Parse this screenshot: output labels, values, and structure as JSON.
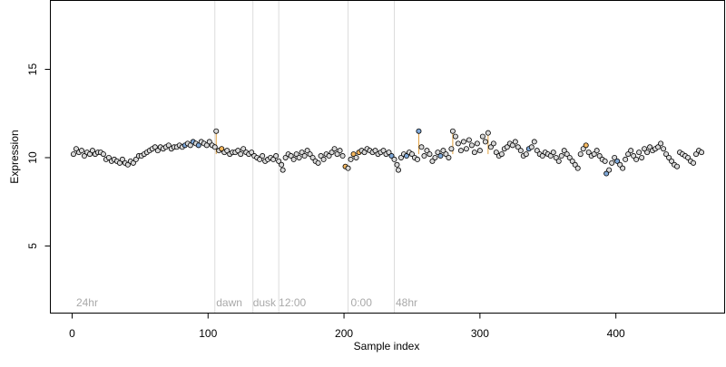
{
  "chart_data": {
    "type": "scatter",
    "title": "",
    "xlabel": "Sample index",
    "ylabel": "Expression",
    "xlim": [
      -16,
      480
    ],
    "ylim": [
      1.2,
      18.9
    ],
    "x_ticks": [
      0,
      100,
      200,
      300,
      400
    ],
    "y_ticks": [
      5,
      10,
      15
    ],
    "grid": false,
    "legend": "none",
    "colors": {
      "default_point": "#d9d9d9",
      "low_point": "#7fa8d8",
      "high_point": "#f5b860",
      "stem": "#e0a040",
      "divider": "#dcdcdc",
      "region_label": "#a9a9a9"
    },
    "regions": [
      {
        "label": "24hr",
        "x": 3
      },
      {
        "label": "dawn",
        "x": 106
      },
      {
        "label": "dusk",
        "x": 133
      },
      {
        "label": "12:00",
        "x": 152
      },
      {
        "label": "0:00",
        "x": 205
      },
      {
        "label": "48hr",
        "x": 238
      }
    ],
    "dividers": [
      105,
      133,
      152,
      203,
      237
    ],
    "series": [
      {
        "points": [
          [
            1,
            10.2
          ],
          [
            3,
            10.5
          ],
          [
            5,
            10.3
          ],
          [
            7,
            10.4
          ],
          [
            9,
            10.1
          ],
          [
            11,
            10.3
          ],
          [
            13,
            10.2
          ],
          [
            15,
            10.4
          ],
          [
            17,
            10.2
          ],
          [
            19,
            10.3
          ],
          [
            21,
            10.3
          ],
          [
            23,
            10.2
          ],
          [
            25,
            9.9
          ],
          [
            27,
            10.0
          ],
          [
            29,
            9.8
          ],
          [
            31,
            9.9
          ],
          [
            33,
            9.8
          ],
          [
            35,
            9.7
          ],
          [
            37,
            9.9
          ],
          [
            39,
            9.7
          ],
          [
            41,
            9.6
          ],
          [
            43,
            9.8
          ],
          [
            45,
            9.7
          ],
          [
            47,
            9.9
          ],
          [
            49,
            10.1
          ],
          [
            51,
            10.1
          ],
          [
            53,
            10.2
          ],
          [
            55,
            10.3
          ],
          [
            57,
            10.4
          ],
          [
            59,
            10.5
          ],
          [
            61,
            10.6
          ],
          [
            63,
            10.4
          ],
          [
            65,
            10.6
          ],
          [
            67,
            10.5
          ],
          [
            69,
            10.6
          ],
          [
            71,
            10.7
          ],
          [
            73,
            10.5
          ],
          [
            75,
            10.6
          ],
          [
            77,
            10.6
          ],
          [
            79,
            10.7
          ],
          [
            81,
            10.6
          ],
          [
            83,
            10.7
          ],
          [
            85,
            10.8
          ],
          [
            87,
            10.7
          ],
          [
            89,
            10.9
          ],
          [
            91,
            10.8
          ],
          [
            93,
            10.7
          ],
          [
            95,
            10.9
          ],
          [
            97,
            10.8
          ],
          [
            99,
            10.7
          ],
          [
            101,
            10.9
          ],
          [
            103,
            10.7
          ],
          [
            105,
            10.6
          ],
          [
            106,
            11.5
          ],
          [
            108,
            10.4
          ],
          [
            110,
            10.5
          ],
          [
            112,
            10.3
          ],
          [
            114,
            10.4
          ],
          [
            116,
            10.2
          ],
          [
            118,
            10.3
          ],
          [
            120,
            10.3
          ],
          [
            122,
            10.4
          ],
          [
            124,
            10.2
          ],
          [
            126,
            10.5
          ],
          [
            128,
            10.3
          ],
          [
            130,
            10.2
          ],
          [
            132,
            10.3
          ],
          [
            134,
            10.1
          ],
          [
            136,
            10.0
          ],
          [
            138,
            9.9
          ],
          [
            140,
            10.1
          ],
          [
            142,
            9.8
          ],
          [
            144,
            9.9
          ],
          [
            146,
            10.0
          ],
          [
            148,
            9.9
          ],
          [
            150,
            10.1
          ],
          [
            152,
            9.8
          ],
          [
            154,
            9.6
          ],
          [
            155,
            9.3
          ],
          [
            157,
            10.0
          ],
          [
            159,
            10.2
          ],
          [
            161,
            10.1
          ],
          [
            163,
            9.9
          ],
          [
            165,
            10.2
          ],
          [
            167,
            10.0
          ],
          [
            169,
            10.3
          ],
          [
            171,
            10.1
          ],
          [
            173,
            10.4
          ],
          [
            175,
            10.2
          ],
          [
            177,
            10.0
          ],
          [
            179,
            9.8
          ],
          [
            181,
            9.7
          ],
          [
            183,
            10.1
          ],
          [
            185,
            9.9
          ],
          [
            187,
            10.2
          ],
          [
            189,
            10.1
          ],
          [
            191,
            10.3
          ],
          [
            193,
            10.5
          ],
          [
            195,
            10.2
          ],
          [
            197,
            10.4
          ],
          [
            199,
            10.1
          ],
          [
            201,
            9.5
          ],
          [
            203,
            9.4
          ],
          [
            205,
            9.9
          ],
          [
            207,
            10.2
          ],
          [
            209,
            10.0
          ],
          [
            211,
            10.3
          ],
          [
            213,
            10.4
          ],
          [
            215,
            10.3
          ],
          [
            217,
            10.5
          ],
          [
            219,
            10.4
          ],
          [
            221,
            10.3
          ],
          [
            223,
            10.4
          ],
          [
            225,
            10.2
          ],
          [
            227,
            10.3
          ],
          [
            229,
            10.4
          ],
          [
            231,
            10.2
          ],
          [
            233,
            10.3
          ],
          [
            235,
            10.1
          ],
          [
            237,
            9.9
          ],
          [
            239,
            9.6
          ],
          [
            240,
            9.3
          ],
          [
            242,
            10.0
          ],
          [
            244,
            10.2
          ],
          [
            246,
            10.1
          ],
          [
            248,
            10.3
          ],
          [
            250,
            10.2
          ],
          [
            252,
            10.0
          ],
          [
            254,
            9.9
          ],
          [
            255,
            11.5
          ],
          [
            257,
            10.6
          ],
          [
            259,
            10.1
          ],
          [
            261,
            10.4
          ],
          [
            263,
            10.2
          ],
          [
            265,
            9.8
          ],
          [
            267,
            10.0
          ],
          [
            269,
            10.3
          ],
          [
            271,
            10.1
          ],
          [
            273,
            10.4
          ],
          [
            275,
            10.2
          ],
          [
            277,
            10.0
          ],
          [
            279,
            10.5
          ],
          [
            280,
            11.5
          ],
          [
            282,
            11.2
          ],
          [
            284,
            10.8
          ],
          [
            286,
            10.4
          ],
          [
            288,
            10.9
          ],
          [
            290,
            10.5
          ],
          [
            292,
            11.0
          ],
          [
            294,
            10.7
          ],
          [
            296,
            10.3
          ],
          [
            298,
            10.8
          ],
          [
            300,
            10.4
          ],
          [
            302,
            11.2
          ],
          [
            304,
            10.9
          ],
          [
            306,
            11.4
          ],
          [
            308,
            10.6
          ],
          [
            310,
            10.8
          ],
          [
            312,
            10.3
          ],
          [
            314,
            10.1
          ],
          [
            316,
            10.2
          ],
          [
            318,
            10.5
          ],
          [
            320,
            10.6
          ],
          [
            322,
            10.8
          ],
          [
            324,
            10.7
          ],
          [
            326,
            10.9
          ],
          [
            328,
            10.6
          ],
          [
            330,
            10.4
          ],
          [
            332,
            10.1
          ],
          [
            334,
            10.2
          ],
          [
            336,
            10.5
          ],
          [
            338,
            10.6
          ],
          [
            340,
            10.9
          ],
          [
            342,
            10.4
          ],
          [
            344,
            10.2
          ],
          [
            346,
            10.1
          ],
          [
            348,
            10.3
          ],
          [
            350,
            10.2
          ],
          [
            352,
            10.1
          ],
          [
            354,
            10.3
          ],
          [
            356,
            10.0
          ],
          [
            358,
            9.8
          ],
          [
            360,
            10.1
          ],
          [
            362,
            10.4
          ],
          [
            364,
            10.2
          ],
          [
            366,
            10.0
          ],
          [
            368,
            9.8
          ],
          [
            370,
            9.6
          ],
          [
            372,
            9.4
          ],
          [
            374,
            10.2
          ],
          [
            376,
            10.5
          ],
          [
            378,
            10.7
          ],
          [
            380,
            10.3
          ],
          [
            382,
            10.1
          ],
          [
            384,
            10.2
          ],
          [
            386,
            10.4
          ],
          [
            388,
            10.1
          ],
          [
            390,
            9.9
          ],
          [
            392,
            9.8
          ],
          [
            393,
            9.1
          ],
          [
            395,
            9.3
          ],
          [
            397,
            9.7
          ],
          [
            399,
            10.0
          ],
          [
            401,
            9.8
          ],
          [
            403,
            9.6
          ],
          [
            405,
            9.4
          ],
          [
            407,
            9.9
          ],
          [
            409,
            10.2
          ],
          [
            411,
            10.4
          ],
          [
            413,
            10.1
          ],
          [
            415,
            9.9
          ],
          [
            417,
            10.3
          ],
          [
            419,
            10.0
          ],
          [
            421,
            10.5
          ],
          [
            423,
            10.3
          ],
          [
            425,
            10.6
          ],
          [
            427,
            10.4
          ],
          [
            429,
            10.5
          ],
          [
            431,
            10.6
          ],
          [
            433,
            10.8
          ],
          [
            435,
            10.5
          ],
          [
            437,
            10.2
          ],
          [
            439,
            10.0
          ],
          [
            441,
            9.8
          ],
          [
            443,
            9.6
          ],
          [
            445,
            9.5
          ],
          [
            447,
            10.3
          ],
          [
            449,
            10.2
          ],
          [
            451,
            10.1
          ],
          [
            453,
            10.0
          ],
          [
            455,
            9.8
          ],
          [
            457,
            9.7
          ],
          [
            459,
            10.2
          ],
          [
            461,
            10.4
          ],
          [
            463,
            10.3
          ]
        ],
        "low_indices": [
          41,
          44,
          46,
          118,
          124,
          129,
          137,
          170,
          199,
          203,
          265,
          266,
          344,
          389,
          390,
          393,
          395,
          396,
          441,
          442,
          443
        ],
        "high_indices": [
          55,
          101,
          104,
          106,
          170,
          191,
          248,
          255,
          262,
          276,
          282,
          284,
          286,
          288,
          291,
          294,
          298,
          300,
          302,
          304,
          306,
          310,
          312,
          314,
          316,
          318,
          323,
          330,
          337
        ]
      }
    ]
  }
}
